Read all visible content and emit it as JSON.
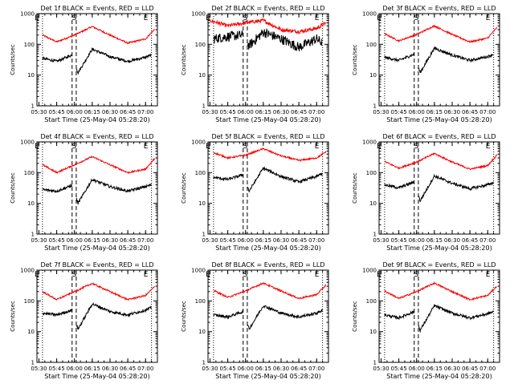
{
  "chart_data": [
    {
      "type": "line",
      "title": "Det 1f BLACK = Events, RED = LLD",
      "ylabel": "Counts/sec",
      "xlabel": "Start Time (25-May-04 05:28:20)",
      "x_ticks": [
        "05:30",
        "05:45",
        "06:00",
        "06:15",
        "06:30",
        "06:45",
        "07:00"
      ],
      "y_ticks": [
        "1",
        "10",
        "100",
        "1000"
      ],
      "yscale": "log",
      "ylim": [
        1,
        1000
      ],
      "xlim": [
        "05:28:20",
        "07:10:00"
      ],
      "markers": [
        "E",
        "S",
        "E"
      ],
      "series": [
        {
          "color": "#ff0000",
          "t": [
            "05:33",
            "05:45",
            "06:00",
            "06:15",
            "06:30",
            "06:45",
            "07:00",
            "07:08"
          ],
          "values": [
            200,
            120,
            200,
            380,
            200,
            110,
            150,
            320
          ]
        },
        {
          "color": "#000000",
          "t": [
            "05:33",
            "05:45",
            "05:58",
            "06:03",
            "06:15",
            "06:30",
            "06:45",
            "07:00",
            "07:05"
          ],
          "values": [
            35,
            28,
            45,
            12,
            70,
            40,
            28,
            38,
            45
          ]
        }
      ]
    },
    {
      "type": "line",
      "title": "Det 2f BLACK = Events, RED = LLD",
      "ylabel": "Counts/sec",
      "xlabel": "Start Time (25-May-04 05:28:20)",
      "x_ticks": [
        "05:30",
        "05:45",
        "06:00",
        "06:15",
        "06:30",
        "06:45",
        "07:00"
      ],
      "y_ticks": [
        "1",
        "10",
        "100",
        "1000"
      ],
      "yscale": "log",
      "ylim": [
        1,
        1000
      ],
      "xlim": [
        "05:28:20",
        "07:10:00"
      ],
      "markers": [
        "E",
        "S",
        "E"
      ],
      "series": [
        {
          "color": "#ff0000",
          "t": [
            "05:30",
            "05:45",
            "06:00",
            "06:15",
            "06:30",
            "06:45",
            "07:00",
            "07:08"
          ],
          "values": [
            600,
            400,
            500,
            600,
            300,
            260,
            330,
            500
          ]
        },
        {
          "color": "#000000",
          "t": [
            "05:33",
            "05:45",
            "05:58",
            "06:03",
            "06:15",
            "06:30",
            "06:45",
            "07:00",
            "07:05"
          ],
          "values": [
            150,
            180,
            200,
            90,
            250,
            150,
            80,
            150,
            110
          ]
        }
      ]
    },
    {
      "type": "line",
      "title": "Det 3f BLACK = Events, RED = LLD",
      "ylabel": "Counts/sec",
      "xlabel": "Start Time (25-May-04 05:28:20)",
      "x_ticks": [
        "05:30",
        "05:45",
        "06:00",
        "06:15",
        "06:30",
        "06:45",
        "07:00"
      ],
      "y_ticks": [
        "1",
        "10",
        "100",
        "1000"
      ],
      "yscale": "log",
      "ylim": [
        1,
        1000
      ],
      "xlim": [
        "05:28:20",
        "07:10:00"
      ],
      "markers": [
        "E",
        "S",
        "E"
      ],
      "series": [
        {
          "color": "#ff0000",
          "t": [
            "05:33",
            "05:45",
            "06:00",
            "06:15",
            "06:30",
            "06:45",
            "07:00",
            "07:08"
          ],
          "values": [
            220,
            130,
            210,
            400,
            210,
            120,
            160,
            360
          ]
        },
        {
          "color": "#000000",
          "t": [
            "05:33",
            "05:45",
            "05:58",
            "06:03",
            "06:15",
            "06:30",
            "06:45",
            "07:00",
            "07:05"
          ],
          "values": [
            38,
            30,
            48,
            12,
            75,
            45,
            30,
            40,
            48
          ]
        }
      ]
    },
    {
      "type": "line",
      "title": "Det 4f BLACK = Events, RED = LLD",
      "ylabel": "Counts/sec",
      "xlabel": "Start Time (25-May-04 05:28:20)",
      "x_ticks": [
        "05:30",
        "05:45",
        "06:00",
        "06:15",
        "06:30",
        "06:45",
        "07:00"
      ],
      "y_ticks": [
        "1",
        "10",
        "100",
        "1000"
      ],
      "yscale": "log",
      "ylim": [
        1,
        1000
      ],
      "xlim": [
        "05:28:20",
        "07:10:00"
      ],
      "markers": [
        "E",
        "S",
        "E"
      ],
      "series": [
        {
          "color": "#ff0000",
          "t": [
            "05:33",
            "05:45",
            "06:00",
            "06:15",
            "06:30",
            "06:45",
            "07:00",
            "07:08"
          ],
          "values": [
            180,
            100,
            180,
            330,
            180,
            100,
            130,
            300
          ]
        },
        {
          "color": "#000000",
          "t": [
            "05:33",
            "05:45",
            "05:58",
            "06:03",
            "06:15",
            "06:30",
            "06:45",
            "07:00",
            "07:05"
          ],
          "values": [
            28,
            25,
            38,
            10,
            60,
            35,
            25,
            35,
            40
          ]
        }
      ]
    },
    {
      "type": "line",
      "title": "Det 5f BLACK = Events, RED = LLD",
      "ylabel": "Counts/sec",
      "xlabel": "Start Time (25-May-04 05:28:20)",
      "x_ticks": [
        "05:30",
        "05:45",
        "06:00",
        "06:15",
        "06:30",
        "06:45",
        "07:00"
      ],
      "y_ticks": [
        "1",
        "10",
        "100",
        "1000"
      ],
      "yscale": "log",
      "ylim": [
        1,
        1000
      ],
      "xlim": [
        "05:28:20",
        "07:10:00"
      ],
      "markers": [
        "E",
        "S",
        "E"
      ],
      "series": [
        {
          "color": "#ff0000",
          "t": [
            "05:33",
            "05:45",
            "06:00",
            "06:15",
            "06:30",
            "06:45",
            "07:00",
            "07:08"
          ],
          "values": [
            450,
            300,
            370,
            600,
            350,
            250,
            300,
            480
          ]
        },
        {
          "color": "#000000",
          "t": [
            "05:33",
            "05:45",
            "05:58",
            "06:03",
            "06:15",
            "06:30",
            "06:45",
            "07:00",
            "07:05"
          ],
          "values": [
            70,
            60,
            85,
            25,
            140,
            75,
            50,
            75,
            95
          ]
        }
      ]
    },
    {
      "type": "line",
      "title": "Det 6f BLACK = Events, RED = LLD",
      "ylabel": "Counts/sec",
      "xlabel": "Start Time (25-May-04 05:28:20)",
      "x_ticks": [
        "05:30",
        "05:45",
        "06:00",
        "06:15",
        "06:30",
        "06:45",
        "07:00"
      ],
      "y_ticks": [
        "1",
        "10",
        "100",
        "1000"
      ],
      "yscale": "log",
      "ylim": [
        1,
        1000
      ],
      "xlim": [
        "05:28:20",
        "07:10:00"
      ],
      "markers": [
        "E",
        "S",
        "E"
      ],
      "series": [
        {
          "color": "#ff0000",
          "t": [
            "05:33",
            "05:45",
            "06:00",
            "06:15",
            "06:30",
            "06:45",
            "07:00",
            "07:08"
          ],
          "values": [
            230,
            140,
            220,
            420,
            220,
            130,
            170,
            380
          ]
        },
        {
          "color": "#000000",
          "t": [
            "05:33",
            "05:45",
            "05:58",
            "06:03",
            "06:15",
            "06:30",
            "06:45",
            "07:00",
            "07:05"
          ],
          "values": [
            40,
            32,
            50,
            12,
            78,
            45,
            30,
            40,
            48
          ]
        }
      ]
    },
    {
      "type": "line",
      "title": "Det 7f BLACK = Events, RED = LLD",
      "ylabel": "Counts/sec",
      "xlabel": "Start Time (25-May-04 05:28:20)",
      "x_ticks": [
        "05:30",
        "05:45",
        "06:00",
        "06:15",
        "06:30",
        "06:45",
        "07:00"
      ],
      "y_ticks": [
        "1",
        "10",
        "100",
        "1000"
      ],
      "yscale": "log",
      "ylim": [
        1,
        1000
      ],
      "xlim": [
        "05:28:20",
        "07:10:00"
      ],
      "markers": [
        "E",
        "S",
        "E"
      ],
      "series": [
        {
          "color": "#ff0000",
          "t": [
            "05:33",
            "05:45",
            "06:00",
            "06:15",
            "06:30",
            "06:45",
            "07:00",
            "07:08"
          ],
          "values": [
            200,
            110,
            200,
            370,
            200,
            110,
            150,
            300
          ]
        },
        {
          "color": "#000000",
          "t": [
            "05:33",
            "05:45",
            "05:58",
            "06:03",
            "06:15",
            "06:30",
            "06:45",
            "07:00",
            "07:05"
          ],
          "values": [
            40,
            35,
            50,
            12,
            80,
            45,
            35,
            50,
            60
          ]
        }
      ]
    },
    {
      "type": "line",
      "title": "Det 8f BLACK = Events, RED = LLD",
      "ylabel": "Counts/sec",
      "xlabel": "Start Time (25-May-04 05:28:20)",
      "x_ticks": [
        "05:30",
        "05:45",
        "06:00",
        "06:15",
        "06:30",
        "06:45",
        "07:00"
      ],
      "y_ticks": [
        "1",
        "10",
        "100",
        "1000"
      ],
      "yscale": "log",
      "ylim": [
        1,
        1000
      ],
      "xlim": [
        "05:28:20",
        "07:10:00"
      ],
      "markers": [
        "E",
        "S",
        "E"
      ],
      "series": [
        {
          "color": "#ff0000",
          "t": [
            "05:33",
            "05:45",
            "06:00",
            "06:15",
            "06:30",
            "06:45",
            "07:00",
            "07:08"
          ],
          "values": [
            220,
            130,
            210,
            380,
            210,
            120,
            160,
            330
          ]
        },
        {
          "color": "#000000",
          "t": [
            "05:33",
            "05:45",
            "05:58",
            "06:03",
            "06:15",
            "06:30",
            "06:45",
            "07:00",
            "07:05"
          ],
          "values": [
            35,
            30,
            45,
            12,
            70,
            40,
            30,
            40,
            50
          ]
        }
      ]
    },
    {
      "type": "line",
      "title": "Det 9f BLACK = Events, RED = LLD",
      "ylabel": "Counts/sec",
      "xlabel": "Start Time (25-May-04 05:28:20)",
      "x_ticks": [
        "05:30",
        "05:45",
        "06:00",
        "06:15",
        "06:30",
        "06:45",
        "07:00"
      ],
      "y_ticks": [
        "1",
        "10",
        "100",
        "1000"
      ],
      "yscale": "log",
      "ylim": [
        1,
        1000
      ],
      "xlim": [
        "05:28:20",
        "07:10:00"
      ],
      "markers": [
        "E",
        "S",
        "E"
      ],
      "series": [
        {
          "color": "#ff0000",
          "t": [
            "05:33",
            "05:45",
            "06:00",
            "06:15",
            "06:30",
            "06:45",
            "07:00",
            "07:08"
          ],
          "values": [
            210,
            120,
            200,
            380,
            200,
            110,
            150,
            310
          ]
        },
        {
          "color": "#000000",
          "t": [
            "05:33",
            "05:45",
            "05:58",
            "06:03",
            "06:15",
            "06:30",
            "06:45",
            "07:00",
            "07:05"
          ],
          "values": [
            35,
            28,
            45,
            11,
            70,
            40,
            28,
            38,
            45
          ]
        }
      ]
    }
  ]
}
